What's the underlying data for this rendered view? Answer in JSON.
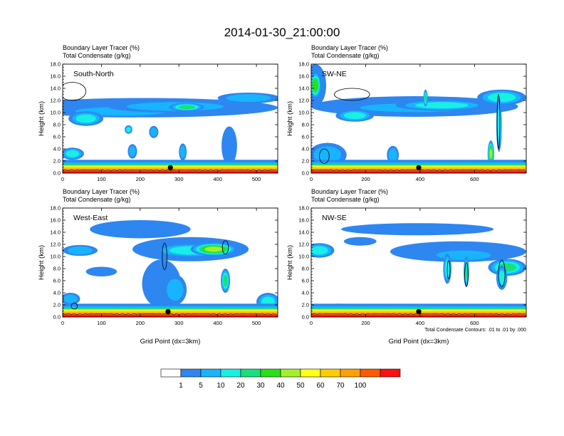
{
  "chart_data": {
    "type": "heatmap",
    "title": "2014-01-30_21:00:00",
    "fill_variable": "Boundary Layer Tracer   (%)",
    "contour_variable": "Total Condensate   (g/kg)",
    "xlabel": "Grid Point (dx=3km)",
    "ylabel": "Height (km)",
    "contour_note": "Total Condensate Contours: .01 to .01 by .000",
    "colorbar": {
      "labels": [
        "1",
        "5",
        "10",
        "20",
        "30",
        "40",
        "50",
        "60",
        "70",
        "100"
      ],
      "colors": [
        "#ffffff",
        "#2e86f0",
        "#18b4ff",
        "#18f0e4",
        "#18e07c",
        "#28e018",
        "#a2f028",
        "#ffff18",
        "#ffcc00",
        "#ffa000",
        "#ff5a00",
        "#ff1010"
      ]
    },
    "panels": [
      {
        "label": "South-North",
        "xlim": [
          0,
          555
        ],
        "xticks": [
          "0",
          "100",
          "200",
          "300",
          "400",
          "500"
        ],
        "ylim": [
          0,
          18
        ],
        "yticks": [
          "0.0",
          "2.0",
          "4.0",
          "6.0",
          "8.0",
          "10.0",
          "12.0",
          "14.0",
          "16.0",
          "18.0"
        ],
        "marker": {
          "x": 278,
          "y": 0.9
        },
        "tracer_features": [
          {
            "x": 210,
            "y": 10.8,
            "rx": 345,
            "ry": 1.6,
            "level": 1
          },
          {
            "x": 150,
            "y": 10.2,
            "rx": 165,
            "ry": 1.0,
            "level": 2
          },
          {
            "x": 290,
            "y": 11.0,
            "rx": 175,
            "ry": 1.0,
            "level": 2
          },
          {
            "x": 60,
            "y": 9.0,
            "rx": 45,
            "ry": 1.2,
            "level": 3
          },
          {
            "x": 320,
            "y": 10.9,
            "rx": 45,
            "ry": 0.7,
            "level": 4
          },
          {
            "x": 480,
            "y": 12.4,
            "rx": 80,
            "ry": 0.9,
            "level": 2
          },
          {
            "x": 180,
            "y": 3.6,
            "rx": 12,
            "ry": 1.2,
            "level": 2
          },
          {
            "x": 310,
            "y": 3.5,
            "rx": 10,
            "ry": 1.4,
            "level": 2
          },
          {
            "x": 170,
            "y": 7.2,
            "rx": 10,
            "ry": 0.7,
            "level": 3
          },
          {
            "x": 235,
            "y": 6.8,
            "rx": 12,
            "ry": 1.0,
            "level": 2
          },
          {
            "x": 430,
            "y": 4.5,
            "rx": 20,
            "ry": 3.2,
            "level": 1
          },
          {
            "x": 25,
            "y": 3.2,
            "rx": 30,
            "ry": 1.0,
            "level": 3
          }
        ],
        "contours": [
          {
            "x": 25,
            "y": 13.5,
            "rx": 35,
            "ry": 1.5
          }
        ]
      },
      {
        "label": "SW-NE",
        "xlim": [
          0,
          790
        ],
        "xticks": [
          "0",
          "200",
          "400",
          "600"
        ],
        "ylim": [
          0,
          18
        ],
        "yticks": [
          "0.0",
          "2.0",
          "4.0",
          "6.0",
          "8.0",
          "10.0",
          "12.0",
          "14.0",
          "16.0",
          "18.0"
        ],
        "marker": {
          "x": 395,
          "y": 0.9
        },
        "tracer_features": [
          {
            "x": 380,
            "y": 11.0,
            "rx": 380,
            "ry": 1.7,
            "level": 1
          },
          {
            "x": 380,
            "y": 10.8,
            "rx": 280,
            "ry": 1.0,
            "level": 2
          },
          {
            "x": 480,
            "y": 11.2,
            "rx": 170,
            "ry": 0.9,
            "level": 3
          },
          {
            "x": 160,
            "y": 9.5,
            "rx": 70,
            "ry": 1.0,
            "level": 3
          },
          {
            "x": 15,
            "y": 14.5,
            "rx": 40,
            "ry": 3.5,
            "level": 1
          },
          {
            "x": 15,
            "y": 14.5,
            "rx": 22,
            "ry": 2.2,
            "level": 5
          },
          {
            "x": 700,
            "y": 12.5,
            "rx": 90,
            "ry": 1.3,
            "level": 3
          },
          {
            "x": 660,
            "y": 3.2,
            "rx": 12,
            "ry": 2.2,
            "level": 6
          },
          {
            "x": 60,
            "y": 3.0,
            "rx": 70,
            "ry": 2.0,
            "level": 2
          },
          {
            "x": 300,
            "y": 3.0,
            "rx": 22,
            "ry": 1.5,
            "level": 2
          },
          {
            "x": 690,
            "y": 8.0,
            "rx": 10,
            "ry": 4.5,
            "level": 3
          },
          {
            "x": 420,
            "y": 12.4,
            "rx": 8,
            "ry": 1.4,
            "level": 4
          }
        ],
        "contours": [
          {
            "x": 150,
            "y": 13.0,
            "rx": 65,
            "ry": 1.0
          },
          {
            "x": 48,
            "y": 2.8,
            "rx": 18,
            "ry": 1.2
          },
          {
            "x": 688,
            "y": 8.5,
            "rx": 5,
            "ry": 4.5
          }
        ]
      },
      {
        "label": "West-East",
        "xlim": [
          0,
          555
        ],
        "xticks": [
          "0",
          "100",
          "200",
          "300",
          "400",
          "500"
        ],
        "ylim": [
          0,
          18
        ],
        "yticks": [
          "0.0",
          "2.0",
          "4.0",
          "6.0",
          "8.0",
          "10.0",
          "12.0",
          "14.0",
          "16.0",
          "18.0"
        ],
        "marker": {
          "x": 272,
          "y": 0.9
        },
        "tracer_features": [
          {
            "x": 330,
            "y": 11.2,
            "rx": 150,
            "ry": 2.0,
            "level": 1
          },
          {
            "x": 330,
            "y": 11.0,
            "rx": 95,
            "ry": 1.2,
            "level": 3
          },
          {
            "x": 390,
            "y": 11.2,
            "rx": 60,
            "ry": 1.1,
            "level": 6
          },
          {
            "x": 45,
            "y": 11.0,
            "rx": 45,
            "ry": 0.9,
            "level": 2
          },
          {
            "x": 200,
            "y": 14.5,
            "rx": 130,
            "ry": 1.5,
            "level": 1
          },
          {
            "x": 255,
            "y": 5.5,
            "rx": 50,
            "ry": 4.0,
            "level": 1
          },
          {
            "x": 290,
            "y": 4.5,
            "rx": 30,
            "ry": 2.5,
            "level": 2
          },
          {
            "x": 420,
            "y": 6.0,
            "rx": 12,
            "ry": 2.0,
            "level": 4
          },
          {
            "x": 530,
            "y": 2.5,
            "rx": 30,
            "ry": 1.5,
            "level": 3
          },
          {
            "x": 100,
            "y": 7.5,
            "rx": 40,
            "ry": 0.8,
            "level": 1
          },
          {
            "x": 20,
            "y": 3.0,
            "rx": 25,
            "ry": 1.0,
            "level": 2
          }
        ],
        "contours": [
          {
            "x": 420,
            "y": 11.5,
            "rx": 8,
            "ry": 1.1
          },
          {
            "x": 263,
            "y": 10.0,
            "rx": 6,
            "ry": 2.2
          },
          {
            "x": 30,
            "y": 1.8,
            "rx": 8,
            "ry": 0.5
          }
        ]
      },
      {
        "label": "NW-SE",
        "xlim": [
          0,
          790
        ],
        "xticks": [
          "0",
          "200",
          "400",
          "600"
        ],
        "ylim": [
          0,
          18
        ],
        "yticks": [
          "0.0",
          "2.0",
          "4.0",
          "6.0",
          "8.0",
          "10.0",
          "12.0",
          "14.0",
          "16.0",
          "18.0"
        ],
        "marker": {
          "x": 395,
          "y": 0.9
        },
        "tracer_features": [
          {
            "x": 540,
            "y": 10.8,
            "rx": 250,
            "ry": 1.7,
            "level": 1
          },
          {
            "x": 560,
            "y": 10.2,
            "rx": 140,
            "ry": 1.1,
            "level": 2
          },
          {
            "x": 720,
            "y": 8.2,
            "rx": 70,
            "ry": 1.4,
            "level": 4
          },
          {
            "x": 30,
            "y": 11.0,
            "rx": 55,
            "ry": 1.2,
            "level": 3
          },
          {
            "x": 390,
            "y": 14.5,
            "rx": 280,
            "ry": 1.0,
            "level": 1
          },
          {
            "x": 500,
            "y": 8.0,
            "rx": 15,
            "ry": 2.5,
            "level": 3
          },
          {
            "x": 570,
            "y": 7.5,
            "rx": 10,
            "ry": 2.5,
            "level": 4
          },
          {
            "x": 700,
            "y": 6.5,
            "rx": 20,
            "ry": 2.0,
            "level": 3
          },
          {
            "x": 180,
            "y": 12.5,
            "rx": 60,
            "ry": 0.7,
            "level": 1
          },
          {
            "x": 100,
            "y": 1.6,
            "rx": 60,
            "ry": 0.6,
            "level": 7
          }
        ],
        "contours": [
          {
            "x": 700,
            "y": 7.2,
            "rx": 12,
            "ry": 2.2
          },
          {
            "x": 570,
            "y": 7.0,
            "rx": 6,
            "ry": 2.0
          },
          {
            "x": 505,
            "y": 7.8,
            "rx": 5,
            "ry": 1.5
          }
        ]
      }
    ]
  }
}
